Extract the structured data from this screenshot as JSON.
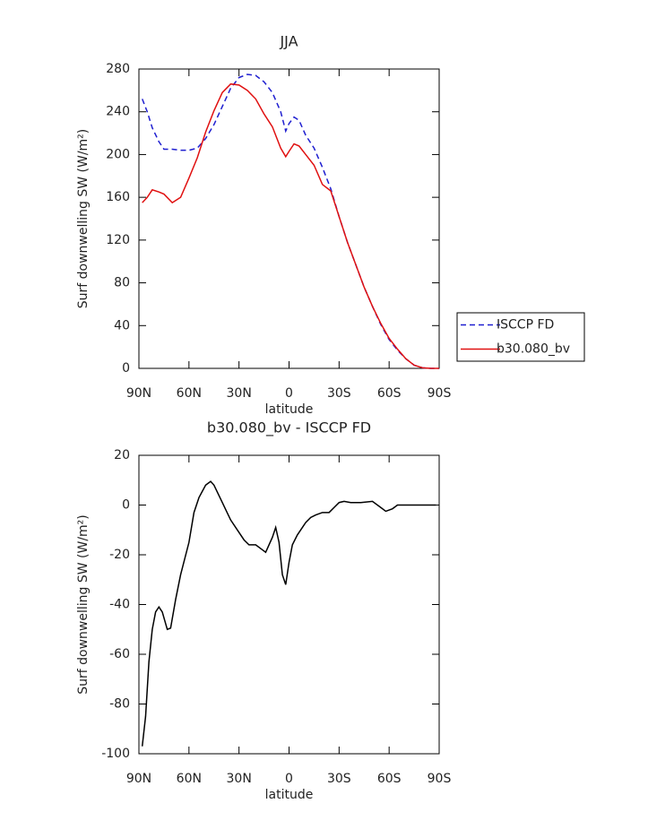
{
  "chart_data": [
    {
      "type": "line",
      "title": "JJA",
      "xlabel": "latitude",
      "ylabel": "Surf downwelling SW (W/m²)",
      "x": [
        88,
        85,
        82,
        78,
        75,
        70,
        65,
        60,
        55,
        50,
        45,
        40,
        35,
        30,
        25,
        20,
        15,
        10,
        5,
        2,
        0,
        -3,
        -6,
        -10,
        -15,
        -20,
        -25,
        -30,
        -35,
        -40,
        -45,
        -50,
        -55,
        -60,
        -65,
        -70,
        -75,
        -80,
        -85,
        -90
      ],
      "series": [
        {
          "name": "ISCCP FD",
          "color": "#1f1fd0",
          "style": "dashed",
          "values": [
            252,
            240,
            225,
            212,
            205,
            205,
            204,
            204,
            206,
            215,
            228,
            245,
            262,
            272,
            275,
            274,
            268,
            258,
            240,
            222,
            229,
            235,
            232,
            218,
            206,
            188,
            168,
            142,
            118,
            97,
            76,
            58,
            41,
            27,
            17,
            9,
            3,
            0.5,
            0,
            0
          ]
        },
        {
          "name": "b30.080_bv",
          "color": "#e01010",
          "style": "solid",
          "values": [
            155,
            160,
            167,
            165,
            163,
            155,
            160,
            178,
            197,
            221,
            241,
            258,
            266,
            265,
            260,
            252,
            238,
            226,
            206,
            198,
            203,
            210,
            208,
            200,
            190,
            172,
            166,
            142,
            118,
            97,
            76,
            58,
            42,
            28,
            18,
            9,
            3,
            0.5,
            0,
            0
          ]
        }
      ],
      "xlim": [
        90,
        -90
      ],
      "xticks": [
        {
          "value": 90,
          "label": "90N"
        },
        {
          "value": 60,
          "label": "60N"
        },
        {
          "value": 30,
          "label": "30N"
        },
        0,
        {
          "value": -30,
          "label": "30S"
        },
        {
          "value": -60,
          "label": "60S"
        },
        {
          "value": -90,
          "label": "90S"
        }
      ],
      "ylim": [
        0,
        280
      ],
      "yticks": [
        0,
        40,
        80,
        120,
        160,
        200,
        240,
        280
      ],
      "legend": "right"
    },
    {
      "type": "line",
      "title": "b30.080_bv - ISCCP FD",
      "xlabel": "latitude",
      "ylabel": "Surf downwelling SW (W/m²)",
      "x": [
        88,
        86,
        84,
        82,
        80,
        78,
        76,
        73,
        71,
        68,
        65,
        60,
        57,
        54,
        50,
        47,
        45,
        40,
        35,
        30,
        27,
        24,
        20,
        16,
        14,
        10,
        8,
        6,
        4,
        2,
        0,
        -2,
        -5,
        -10,
        -13,
        -16,
        -20,
        -24,
        -27,
        -30,
        -33,
        -37,
        -43,
        -50,
        -55,
        -58,
        -62,
        -65,
        -70,
        -80,
        -88
      ],
      "series": [
        {
          "name": "b30.080_bv - ISCCP FD",
          "color": "#000000",
          "style": "solid",
          "values": [
            -97,
            -85,
            -63,
            -50,
            -43,
            -41,
            -43,
            -50,
            -49.5,
            -38,
            -28,
            -15,
            -3,
            3,
            8,
            9.5,
            8,
            1,
            -6,
            -11,
            -14,
            -16,
            -16,
            -18,
            -19,
            -13,
            -9,
            -15,
            -28,
            -32,
            -23,
            -16,
            -12,
            -7,
            -5,
            -4,
            -3,
            -3,
            -1,
            1,
            1.5,
            1,
            1,
            1.5,
            -1,
            -2.5,
            -1.5,
            0,
            0,
            0,
            0
          ]
        }
      ],
      "xlim": [
        90,
        -90
      ],
      "xticks": [
        {
          "value": 90,
          "label": "90N"
        },
        {
          "value": 60,
          "label": "60N"
        },
        {
          "value": 30,
          "label": "30N"
        },
        0,
        {
          "value": -30,
          "label": "30S"
        },
        {
          "value": -60,
          "label": "60S"
        },
        {
          "value": -90,
          "label": "90S"
        }
      ],
      "ylim": [
        -100,
        20
      ],
      "yticks": [
        -100,
        -80,
        -60,
        -40,
        -20,
        0,
        20
      ]
    }
  ]
}
